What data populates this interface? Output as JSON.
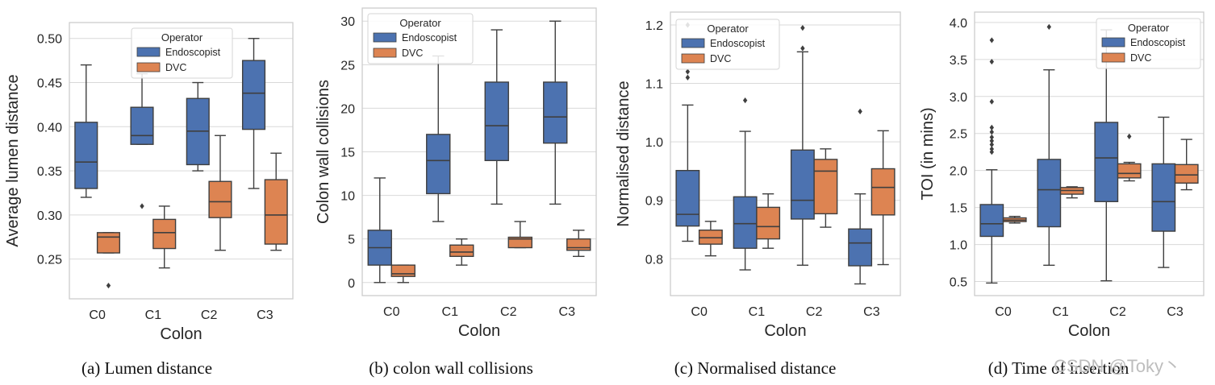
{
  "figure": {
    "watermark": "CSDN @Toky丶"
  },
  "chart_data": [
    {
      "type": "box",
      "caption": "(a) Lumen distance",
      "xlabel": "Colon",
      "ylabel": "Average lumen distance",
      "ylim": [
        0.205,
        0.518
      ],
      "yticks": [
        0.25,
        0.3,
        0.35,
        0.4,
        0.45,
        0.5
      ],
      "ytick_labels": [
        "0.25",
        "0.30",
        "0.35",
        "0.40",
        "0.45",
        "0.50"
      ],
      "categories": [
        "C0",
        "C1",
        "C2",
        "C3"
      ],
      "legend": {
        "title": "Operator",
        "entries": [
          "Endoscopist",
          "DVC"
        ],
        "position": "upper-center"
      },
      "series": [
        {
          "name": "Endoscopist",
          "color": "#4c72b0",
          "boxes": [
            {
              "whislo": 0.32,
              "q1": 0.33,
              "med": 0.36,
              "q3": 0.405,
              "whishi": 0.47,
              "fliers": []
            },
            {
              "whislo": 0.38,
              "q1": 0.38,
              "med": 0.39,
              "q3": 0.422,
              "whishi": 0.46,
              "fliers": [
                0.31
              ]
            },
            {
              "whislo": 0.35,
              "q1": 0.357,
              "med": 0.395,
              "q3": 0.432,
              "whishi": 0.45,
              "fliers": []
            },
            {
              "whislo": 0.33,
              "q1": 0.397,
              "med": 0.438,
              "q3": 0.475,
              "whishi": 0.5,
              "fliers": []
            }
          ]
        },
        {
          "name": "DVC",
          "color": "#dd8452",
          "boxes": [
            {
              "whislo": 0.257,
              "q1": 0.257,
              "med": 0.275,
              "q3": 0.28,
              "whishi": 0.28,
              "fliers": [
                0.22
              ]
            },
            {
              "whislo": 0.24,
              "q1": 0.262,
              "med": 0.28,
              "q3": 0.295,
              "whishi": 0.31,
              "fliers": []
            },
            {
              "whislo": 0.26,
              "q1": 0.297,
              "med": 0.315,
              "q3": 0.338,
              "whishi": 0.39,
              "fliers": []
            },
            {
              "whislo": 0.26,
              "q1": 0.267,
              "med": 0.3,
              "q3": 0.34,
              "whishi": 0.37,
              "fliers": []
            }
          ]
        }
      ]
    },
    {
      "type": "box",
      "caption": "(b) colon wall collisions",
      "xlabel": "Colon",
      "ylabel": "Colon wall collisions",
      "ylim": [
        -1.5,
        31.5
      ],
      "yticks": [
        0,
        5,
        10,
        15,
        20,
        25,
        30
      ],
      "ytick_labels": [
        "0",
        "5",
        "10",
        "15",
        "20",
        "25",
        "30"
      ],
      "categories": [
        "C0",
        "C1",
        "C2",
        "C3"
      ],
      "legend": {
        "title": "Operator",
        "entries": [
          "Endoscopist",
          "DVC"
        ],
        "position": "upper-left"
      },
      "series": [
        {
          "name": "Endoscopist",
          "color": "#4c72b0",
          "boxes": [
            {
              "whislo": 0,
              "q1": 2,
              "med": 4,
              "q3": 6,
              "whishi": 12,
              "fliers": []
            },
            {
              "whislo": 7,
              "q1": 10.2,
              "med": 14,
              "q3": 17,
              "whishi": 26,
              "fliers": []
            },
            {
              "whislo": 9,
              "q1": 14,
              "med": 18,
              "q3": 23,
              "whishi": 29,
              "fliers": []
            },
            {
              "whislo": 9,
              "q1": 16,
              "med": 19,
              "q3": 23,
              "whishi": 30,
              "fliers": []
            }
          ]
        },
        {
          "name": "DVC",
          "color": "#dd8452",
          "boxes": [
            {
              "whislo": 0,
              "q1": 0.7,
              "med": 1,
              "q3": 2,
              "whishi": 2,
              "fliers": []
            },
            {
              "whislo": 2,
              "q1": 3,
              "med": 3.5,
              "q3": 4.3,
              "whishi": 5,
              "fliers": []
            },
            {
              "whislo": 4,
              "q1": 4,
              "med": 5,
              "q3": 5.2,
              "whishi": 7,
              "fliers": []
            },
            {
              "whislo": 3,
              "q1": 3.7,
              "med": 4,
              "q3": 5,
              "whishi": 6,
              "fliers": []
            }
          ]
        }
      ]
    },
    {
      "type": "box",
      "caption": "(c) Normalised distance",
      "xlabel": "Colon",
      "ylabel": "Normalised distance",
      "ylim": [
        0.737,
        1.222
      ],
      "yticks": [
        0.8,
        0.9,
        1.0,
        1.1,
        1.2
      ],
      "ytick_labels": [
        "0.8",
        "0.9",
        "1.0",
        "1.1",
        "1.2"
      ],
      "categories": [
        "C0",
        "C1",
        "C2",
        "C3"
      ],
      "legend": {
        "title": "Operator",
        "entries": [
          "Endoscopist",
          "DVC"
        ],
        "position": "upper-left"
      },
      "series": [
        {
          "name": "Endoscopist",
          "color": "#4c72b0",
          "boxes": [
            {
              "whislo": 0.83,
              "q1": 0.856,
              "med": 0.876,
              "q3": 0.951,
              "whishi": 1.063,
              "fliers": [
                1.11,
                1.12,
                1.2
              ]
            },
            {
              "whislo": 0.781,
              "q1": 0.818,
              "med": 0.86,
              "q3": 0.906,
              "whishi": 1.018,
              "fliers": [
                1.071
              ]
            },
            {
              "whislo": 0.789,
              "q1": 0.868,
              "med": 0.9,
              "q3": 0.986,
              "whishi": 1.154,
              "fliers": [
                1.16,
                1.195
              ]
            },
            {
              "whislo": 0.757,
              "q1": 0.788,
              "med": 0.827,
              "q3": 0.851,
              "whishi": 0.911,
              "fliers": [
                1.052
              ]
            }
          ]
        },
        {
          "name": "DVC",
          "color": "#dd8452",
          "boxes": [
            {
              "whislo": 0.805,
              "q1": 0.825,
              "med": 0.836,
              "q3": 0.849,
              "whishi": 0.864,
              "fliers": []
            },
            {
              "whislo": 0.818,
              "q1": 0.834,
              "med": 0.855,
              "q3": 0.888,
              "whishi": 0.911,
              "fliers": []
            },
            {
              "whislo": 0.854,
              "q1": 0.877,
              "med": 0.95,
              "q3": 0.97,
              "whishi": 0.988,
              "fliers": []
            },
            {
              "whislo": 0.79,
              "q1": 0.875,
              "med": 0.922,
              "q3": 0.954,
              "whishi": 1.019,
              "fliers": []
            }
          ]
        }
      ]
    },
    {
      "type": "box",
      "caption": "(d) Time of insertion",
      "xlabel": "Colon",
      "ylabel": "TOI (in mins)",
      "ylim": [
        0.31,
        4.14
      ],
      "yticks": [
        0.5,
        1.0,
        1.5,
        2.0,
        2.5,
        3.0,
        3.5,
        4.0
      ],
      "ytick_labels": [
        "0.5",
        "1.0",
        "1.5",
        "2.0",
        "2.5",
        "3.0",
        "3.5",
        "4.0"
      ],
      "categories": [
        "C0",
        "C1",
        "C2",
        "C3"
      ],
      "legend": {
        "title": "Operator",
        "entries": [
          "Endoscopist",
          "DVC"
        ],
        "position": "upper-right"
      },
      "series": [
        {
          "name": "Endoscopist",
          "color": "#4c72b0",
          "boxes": [
            {
              "whislo": 0.48,
              "q1": 1.11,
              "med": 1.28,
              "q3": 1.54,
              "whishi": 2.01,
              "fliers": [
                2.25,
                2.29,
                2.35,
                2.4,
                2.45,
                2.52,
                2.58,
                2.93,
                3.47,
                3.76
              ]
            },
            {
              "whislo": 0.72,
              "q1": 1.24,
              "med": 1.74,
              "q3": 2.15,
              "whishi": 3.36,
              "fliers": [
                3.94
              ]
            },
            {
              "whislo": 0.51,
              "q1": 1.58,
              "med": 2.17,
              "q3": 2.65,
              "whishi": 3.9,
              "fliers": []
            },
            {
              "whislo": 0.69,
              "q1": 1.18,
              "med": 1.58,
              "q3": 2.09,
              "whishi": 2.72,
              "fliers": []
            }
          ]
        },
        {
          "name": "DVC",
          "color": "#dd8452",
          "boxes": [
            {
              "whislo": 1.29,
              "q1": 1.31,
              "med": 1.33,
              "q3": 1.36,
              "whishi": 1.38,
              "fliers": []
            },
            {
              "whislo": 1.63,
              "q1": 1.68,
              "med": 1.73,
              "q3": 1.77,
              "whishi": 1.78,
              "fliers": []
            },
            {
              "whislo": 1.86,
              "q1": 1.9,
              "med": 1.96,
              "q3": 2.09,
              "whishi": 2.11,
              "fliers": [
                2.46
              ]
            },
            {
              "whislo": 1.74,
              "q1": 1.83,
              "med": 1.94,
              "q3": 2.08,
              "whishi": 2.42,
              "fliers": []
            }
          ]
        }
      ]
    }
  ]
}
